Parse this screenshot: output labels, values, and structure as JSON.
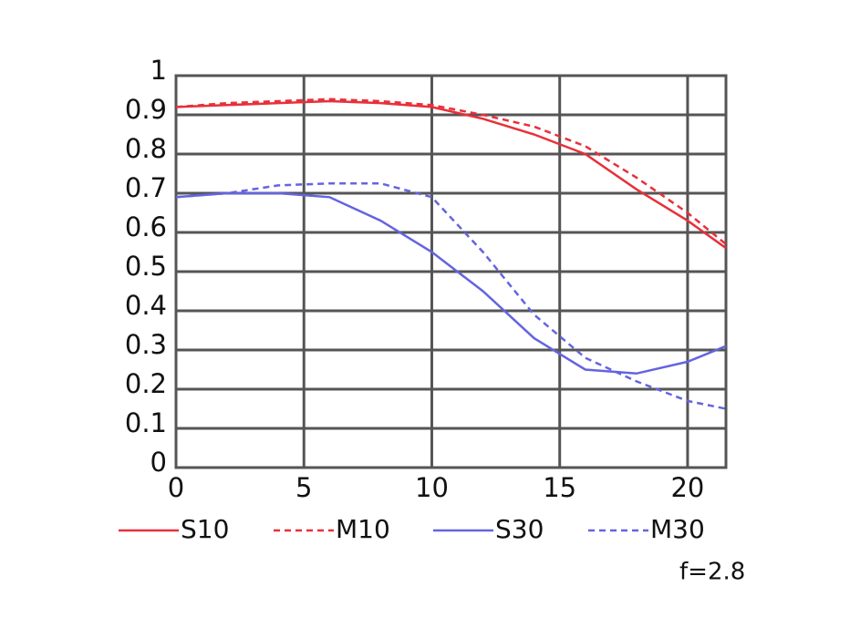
{
  "chart_data": {
    "type": "line",
    "annotation": "f=2.8",
    "x": [
      0,
      2,
      4,
      6,
      8,
      10,
      12,
      14,
      16,
      18,
      20,
      21.5
    ],
    "series": [
      {
        "name": "S10",
        "color": "#e8303a",
        "dashed": false,
        "values": [
          0.92,
          0.925,
          0.93,
          0.935,
          0.93,
          0.92,
          0.89,
          0.85,
          0.8,
          0.71,
          0.63,
          0.56
        ]
      },
      {
        "name": "M10",
        "color": "#e8303a",
        "dashed": true,
        "values": [
          0.92,
          0.93,
          0.935,
          0.94,
          0.935,
          0.925,
          0.9,
          0.87,
          0.82,
          0.74,
          0.65,
          0.57
        ]
      },
      {
        "name": "S30",
        "color": "#6464e0",
        "dashed": false,
        "values": [
          0.69,
          0.7,
          0.7,
          0.69,
          0.63,
          0.55,
          0.45,
          0.33,
          0.25,
          0.24,
          0.27,
          0.31
        ]
      },
      {
        "name": "M30",
        "color": "#6464e0",
        "dashed": true,
        "values": [
          0.69,
          0.7,
          0.72,
          0.725,
          0.725,
          0.69,
          0.55,
          0.39,
          0.28,
          0.22,
          0.17,
          0.15
        ]
      }
    ],
    "xlim": [
      0,
      21.5
    ],
    "ylim": [
      0,
      1
    ],
    "xticks": [
      0,
      5,
      10,
      15,
      20
    ],
    "yticks": [
      0,
      0.1,
      0.2,
      0.3,
      0.4,
      0.5,
      0.6,
      0.7,
      0.8,
      0.9,
      1
    ],
    "grid": true
  }
}
